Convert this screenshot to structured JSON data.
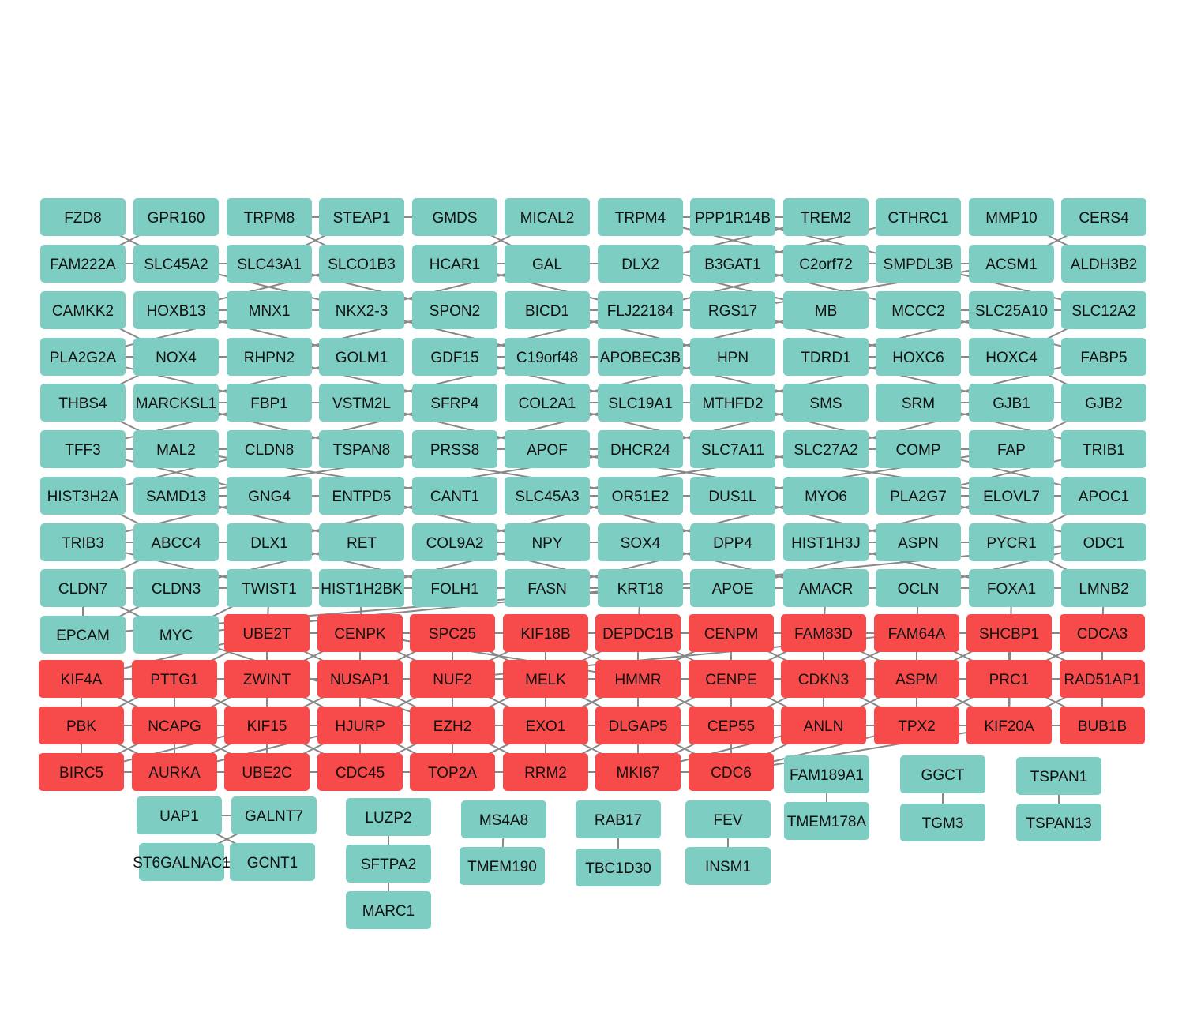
{
  "colors": {
    "teal": "#7ecdc2",
    "red": "#f74a4a",
    "edge": "#888888"
  },
  "grid_rows": [
    [
      "FZD8",
      "GPR160",
      "TRPM8",
      "STEAP1",
      "GMDS",
      "MICAL2",
      "TRPM4",
      "PPP1R14B",
      "TREM2",
      "CTHRC1",
      "MMP10",
      "CERS4"
    ],
    [
      "FAM222A",
      "SLC45A2",
      "SLC43A1",
      "SLCO1B3",
      "HCAR1",
      "GAL",
      "DLX2",
      "B3GAT1",
      "C2orf72",
      "SMPDL3B",
      "ACSM1",
      "ALDH3B2"
    ],
    [
      "CAMKK2",
      "HOXB13",
      "MNX1",
      "NKX2-3",
      "SPON2",
      "BICD1",
      "FLJ22184",
      "RGS17",
      "MB",
      "MCCC2",
      "SLC25A10",
      "SLC12A2"
    ],
    [
      "PLA2G2A",
      "NOX4",
      "RHPN2",
      "GOLM1",
      "GDF15",
      "C19orf48",
      "APOBEC3B",
      "HPN",
      "TDRD1",
      "HOXC6",
      "HOXC4",
      "FABP5"
    ],
    [
      "THBS4",
      "MARCKSL1",
      "FBP1",
      "VSTM2L",
      "SFRP4",
      "COL2A1",
      "SLC19A1",
      "MTHFD2",
      "SMS",
      "SRM",
      "GJB1",
      "GJB2"
    ],
    [
      "TFF3",
      "MAL2",
      "CLDN8",
      "TSPAN8",
      "PRSS8",
      "APOF",
      "DHCR24",
      "SLC7A11",
      "SLC27A2",
      "COMP",
      "FAP",
      "TRIB1"
    ],
    [
      "HIST3H2A",
      "SAMD13",
      "GNG4",
      "ENTPD5",
      "CANT1",
      "SLC45A3",
      "OR51E2",
      "DUS1L",
      "MYO6",
      "PLA2G7",
      "ELOVL7",
      "APOC1"
    ],
    [
      "TRIB3",
      "ABCC4",
      "DLX1",
      "RET",
      "COL9A2",
      "NPY",
      "SOX4",
      "DPP4",
      "HIST1H3J",
      "ASPN",
      "PYCR1",
      "ODC1"
    ],
    [
      "CLDN7",
      "CLDN3",
      "TWIST1",
      "HIST1H2BK",
      "FOLH1",
      "FASN",
      "KRT18",
      "APOE",
      "AMACR",
      "OCLN",
      "FOXA1",
      "LMNB2"
    ]
  ],
  "teal_extra": [
    "EPCAM",
    "MYC"
  ],
  "red_rows": [
    [
      "UBE2T",
      "CENPK",
      "SPC25",
      "KIF18B",
      "DEPDC1B",
      "CENPM",
      "FAM83D",
      "FAM64A",
      "SHCBP1",
      "CDCA3"
    ],
    [
      "KIF4A",
      "PTTG1",
      "ZWINT",
      "NUSAP1",
      "NUF2",
      "MELK",
      "HMMR",
      "CENPE",
      "CDKN3",
      "ASPM",
      "PRC1",
      "RAD51AP1"
    ],
    [
      "PBK",
      "NCAPG",
      "KIF15",
      "HJURP",
      "EZH2",
      "EXO1",
      "DLGAP5",
      "CEP55",
      "ANLN",
      "TPX2",
      "KIF20A",
      "BUB1B"
    ],
    [
      "BIRC5",
      "AURKA",
      "UBE2C",
      "CDC45",
      "TOP2A",
      "RRM2",
      "MKI67",
      "CDC6"
    ]
  ],
  "small_components": [
    [
      "UAP1",
      "GALNT7",
      "ST6GALNAC1",
      "GCNT1"
    ],
    [
      "LUZP2",
      "SFTPA2",
      "MARC1"
    ],
    [
      "MS4A8",
      "TMEM190"
    ],
    [
      "RAB17",
      "TBC1D30"
    ],
    [
      "FEV",
      "INSM1"
    ],
    [
      "FAM189A1",
      "TMEM178A"
    ],
    [
      "GGCT",
      "TGM3"
    ],
    [
      "TSPAN1",
      "TSPAN13"
    ]
  ]
}
